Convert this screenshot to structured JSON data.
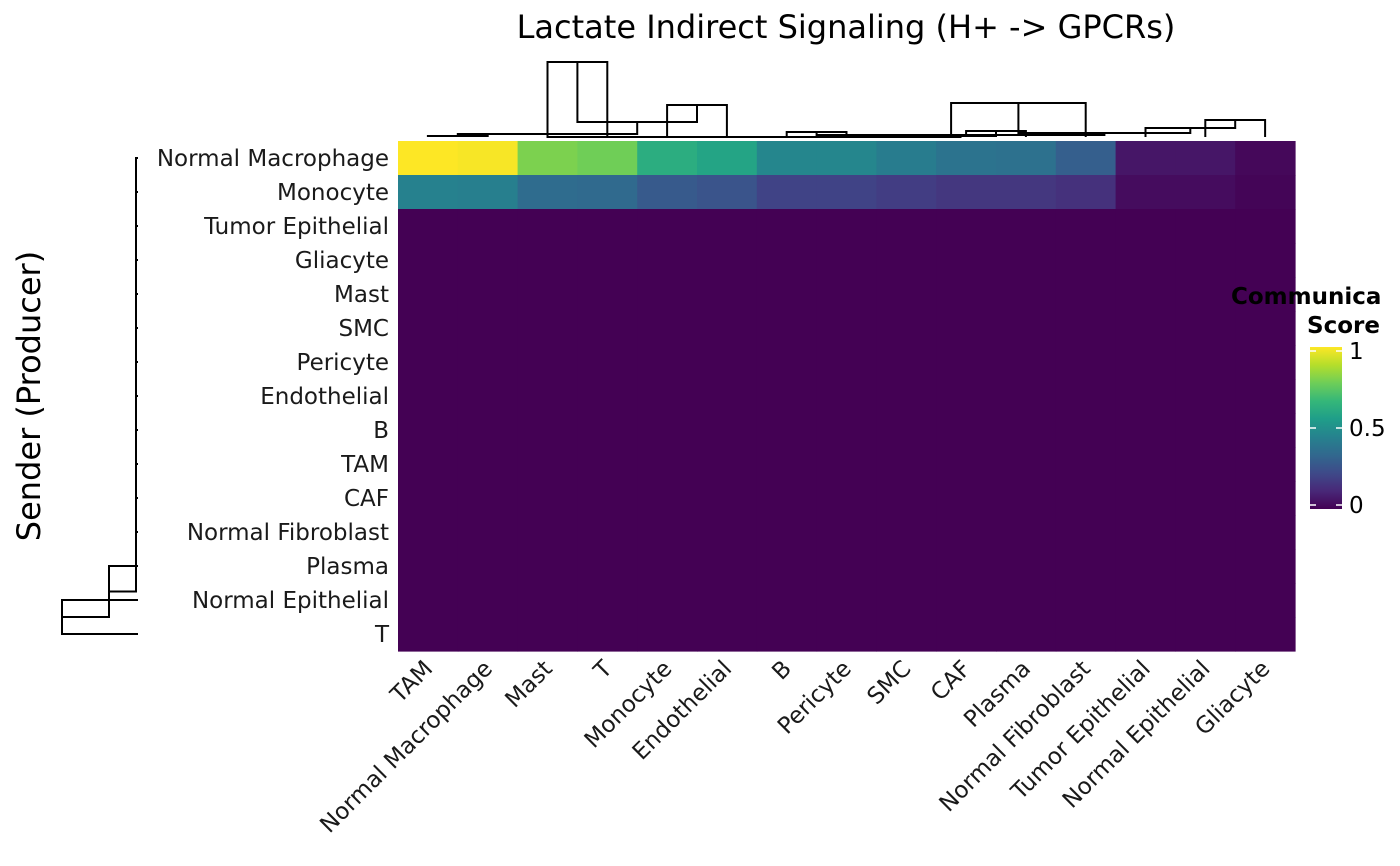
{
  "chart_data": {
    "type": "heatmap",
    "title": "Lactate Indirect Signaling (H+ -> GPCRs)",
    "ylabel": "Sender (Producer)",
    "xlabel": "",
    "rows": [
      "Normal Macrophage",
      "Monocyte",
      "Tumor Epithelial",
      "Gliacyte",
      "Mast",
      "SMC",
      "Pericyte",
      "Endothelial",
      "B",
      "TAM",
      "CAF",
      "Normal Fibroblast",
      "Plasma",
      "Normal Epithelial",
      "T"
    ],
    "columns": [
      "TAM",
      "Normal Macrophage",
      "Mast",
      "T",
      "Monocyte",
      "Endothelial",
      "B",
      "Pericyte",
      "SMC",
      "CAF",
      "Plasma",
      "Normal Fibroblast",
      "Tumor Epithelial",
      "Normal Epithelial",
      "Gliacyte"
    ],
    "values": [
      [
        1.0,
        0.99,
        0.8,
        0.78,
        0.62,
        0.58,
        0.46,
        0.46,
        0.42,
        0.38,
        0.37,
        0.3,
        0.06,
        0.06,
        0.02
      ],
      [
        0.44,
        0.43,
        0.35,
        0.34,
        0.28,
        0.26,
        0.2,
        0.2,
        0.18,
        0.16,
        0.16,
        0.14,
        0.03,
        0.03,
        0.01
      ],
      [
        0,
        0,
        0,
        0,
        0,
        0,
        0,
        0,
        0,
        0,
        0,
        0,
        0,
        0,
        0
      ],
      [
        0,
        0,
        0,
        0,
        0,
        0,
        0,
        0,
        0,
        0,
        0,
        0,
        0,
        0,
        0
      ],
      [
        0,
        0,
        0,
        0,
        0,
        0,
        0,
        0,
        0,
        0,
        0,
        0,
        0,
        0,
        0
      ],
      [
        0,
        0,
        0,
        0,
        0,
        0,
        0,
        0,
        0,
        0,
        0,
        0,
        0,
        0,
        0
      ],
      [
        0,
        0,
        0,
        0,
        0,
        0,
        0,
        0,
        0,
        0,
        0,
        0,
        0,
        0,
        0
      ],
      [
        0,
        0,
        0,
        0,
        0,
        0,
        0,
        0,
        0,
        0,
        0,
        0,
        0,
        0,
        0
      ],
      [
        0,
        0,
        0,
        0,
        0,
        0,
        0,
        0,
        0,
        0,
        0,
        0,
        0,
        0,
        0
      ],
      [
        0,
        0,
        0,
        0,
        0,
        0,
        0,
        0,
        0,
        0,
        0,
        0,
        0,
        0,
        0
      ],
      [
        0,
        0,
        0,
        0,
        0,
        0,
        0,
        0,
        0,
        0,
        0,
        0,
        0,
        0,
        0
      ],
      [
        0,
        0,
        0,
        0,
        0,
        0,
        0,
        0,
        0,
        0,
        0,
        0,
        0,
        0,
        0
      ],
      [
        0,
        0,
        0,
        0,
        0,
        0,
        0,
        0,
        0,
        0,
        0,
        0,
        0,
        0,
        0
      ],
      [
        0,
        0,
        0,
        0,
        0,
        0,
        0,
        0,
        0,
        0,
        0,
        0,
        0,
        0,
        0
      ],
      [
        0,
        0,
        0,
        0,
        0,
        0,
        0,
        0,
        0,
        0,
        0,
        0,
        0,
        0,
        0
      ]
    ],
    "legend": {
      "title_lines": [
        "Communica",
        "Score"
      ],
      "ticks": [
        {
          "value": 1,
          "label": "1"
        },
        {
          "value": 0.5,
          "label": "0.5"
        },
        {
          "value": 0,
          "label": "0"
        }
      ],
      "range": [
        0,
        1
      ],
      "colormap": "viridis",
      "placement": "right"
    },
    "row_dendrogram": true,
    "column_dendrogram": true
  }
}
